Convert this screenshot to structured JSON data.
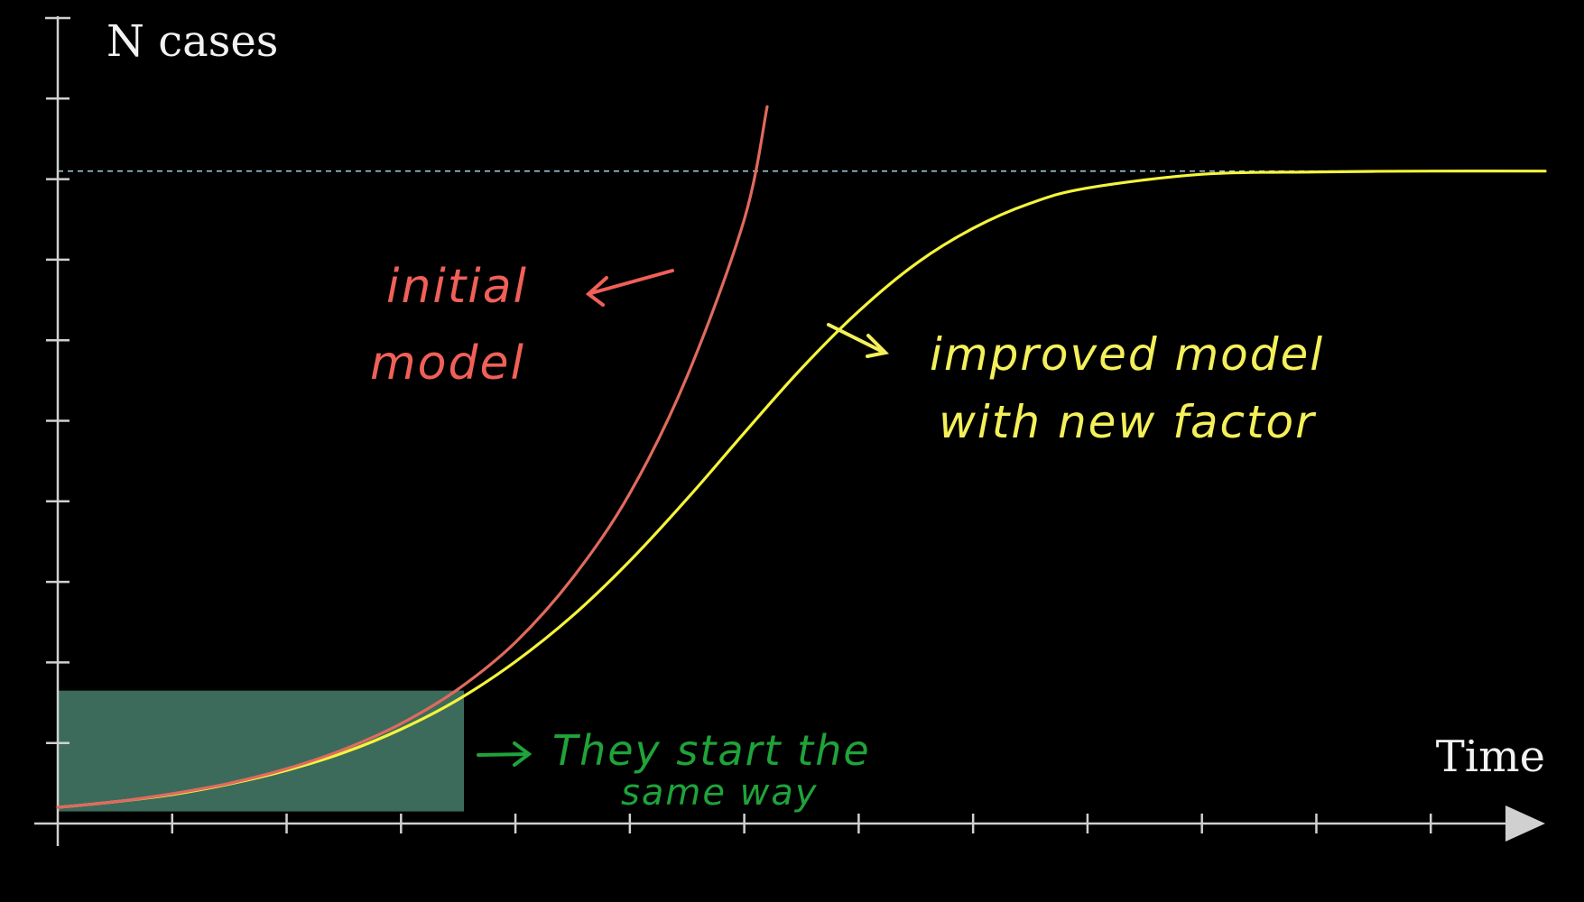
{
  "chart_data": {
    "type": "line",
    "xlabel": "Time",
    "ylabel": "N cases",
    "xlim": [
      0,
      13
    ],
    "ylim": [
      0,
      10
    ],
    "x_ticks": [
      1,
      2,
      3,
      4,
      5,
      6,
      7,
      8,
      9,
      10,
      11,
      12
    ],
    "y_ticks": [
      1,
      2,
      3,
      4,
      5,
      6,
      7,
      8,
      9
    ],
    "grid": false,
    "reference_line": {
      "y": 8.1,
      "style": "dashed",
      "color": "#9ec9d8"
    },
    "highlight_region": {
      "x": [
        0,
        3.55
      ],
      "y": [
        0.15,
        1.65
      ],
      "color": "#3c6b5c"
    },
    "series": [
      {
        "kind": "exponential",
        "color": "#e06a5e",
        "x": [
          0,
          0.5,
          1,
          1.5,
          2,
          2.5,
          3,
          3.5,
          4,
          4.5,
          5,
          5.5,
          6,
          6.2
        ],
        "values": [
          0.2,
          0.27,
          0.37,
          0.5,
          0.68,
          0.92,
          1.24,
          1.67,
          2.25,
          3.05,
          4.1,
          5.55,
          7.5,
          8.9
        ]
      },
      {
        "kind": "logistic",
        "color": "#f4f43c",
        "x": [
          0,
          0.5,
          1,
          1.5,
          2,
          2.5,
          3,
          3.5,
          4,
          4.5,
          5,
          5.5,
          6,
          6.5,
          7,
          7.5,
          8,
          8.5,
          9,
          10,
          11,
          12,
          13
        ],
        "values": [
          0.2,
          0.27,
          0.36,
          0.49,
          0.66,
          0.88,
          1.17,
          1.54,
          2.01,
          2.58,
          3.26,
          4.03,
          4.85,
          5.65,
          6.36,
          6.95,
          7.39,
          7.7,
          7.89,
          8.06,
          8.09,
          8.1,
          8.1
        ]
      }
    ],
    "annotations": [
      {
        "id": "initial",
        "lines": [
          "initial",
          "model"
        ],
        "color": "#f06058"
      },
      {
        "id": "improved",
        "lines": [
          "improved model",
          "with new factor"
        ],
        "color": "#f4f05a"
      },
      {
        "id": "same",
        "lines": [
          "They start the",
          "same way"
        ],
        "color": "#1fa33a"
      }
    ]
  }
}
